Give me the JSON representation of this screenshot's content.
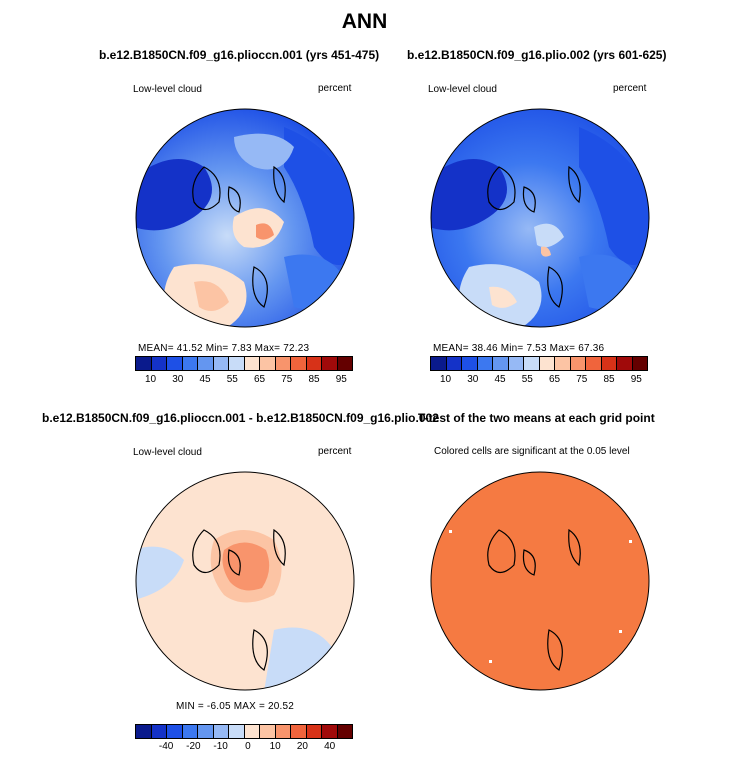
{
  "title": "ANN",
  "panels": {
    "p1": {
      "title": "b.e12.B1850CN.f09_g16.plioccn.001 (yrs 451-475)",
      "variable": "Low-level cloud",
      "units": "percent",
      "stats": "MEAN=   41.52   Min=     7.83   Max=   72.23"
    },
    "p2": {
      "title": "b.e12.B1850CN.f09_g16.plio.002 (yrs 601-625)",
      "variable": "Low-level cloud",
      "units": "percent",
      "stats": "MEAN=   38.46   Min=     7.53   Max=   67.36"
    },
    "p3": {
      "title": "b.e12.B1850CN.f09_g16.plioccn.001 - b.e12.B1850CN.f09_g16.plio.002",
      "variable": "Low-level cloud",
      "units": "percent",
      "stats": "MIN  =   -6.05  MAX  =   20.52"
    },
    "p4": {
      "title": "T-test of the two means at each grid point",
      "subtitle": "Colored cells are significant at the 0.05 level"
    }
  },
  "colorbar_abs": {
    "colors": [
      "#0a1a8c",
      "#1432c8",
      "#1e50e6",
      "#3c78f0",
      "#6496f0",
      "#96b9f5",
      "#c8dcf8",
      "#fde3d0",
      "#fcc4a4",
      "#f8946c",
      "#f0643c",
      "#d73218",
      "#a00a0a",
      "#640000"
    ],
    "labels": [
      "10",
      "30",
      "45",
      "55",
      "65",
      "75",
      "85",
      "95"
    ]
  },
  "colorbar_diff": {
    "colors": [
      "#0a1a8c",
      "#1432c8",
      "#1e50e6",
      "#3c78f0",
      "#6496f0",
      "#96b9f5",
      "#c8dcf8",
      "#fde3d0",
      "#fcc4a4",
      "#f8946c",
      "#f0643c",
      "#d73218",
      "#a00a0a",
      "#640000"
    ],
    "labels": [
      "-40",
      "-20",
      "-10",
      "0",
      "10",
      "20",
      "40"
    ]
  }
}
